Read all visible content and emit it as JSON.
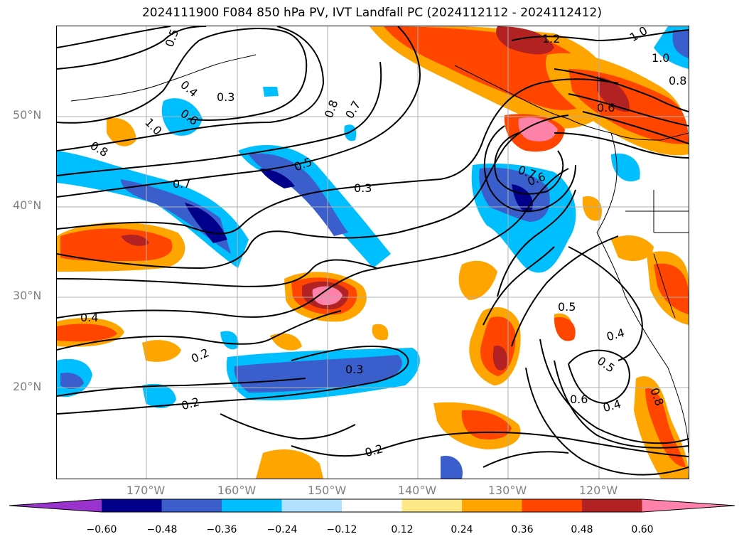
{
  "title": "2024111900 F084 850 hPa PV, IVT Landfall PC (2024112112 - 2024112412)",
  "lat_labels": [
    "50°N",
    "40°N",
    "30°N",
    "20°N"
  ],
  "lon_labels": [
    "170°W",
    "160°W",
    "150°W",
    "140°W",
    "130°W",
    "120°W"
  ],
  "contour_labels": [
    "0.5",
    "0.4",
    "0.3",
    "0.6",
    "1.0",
    "0.8",
    "0.7",
    "0.5",
    "0.3",
    "0.8",
    "0.7",
    "1.2",
    "1.0",
    "1.0",
    "0.8",
    "0.6",
    "0.7",
    "0.6",
    "0.5",
    "0.4",
    "0.4",
    "0.2",
    "0.2",
    "0.3",
    "0.2",
    "0.5",
    "0.6",
    "0.4",
    "0.8"
  ],
  "colorbar": {
    "ticks": [
      "−0.60",
      "−0.48",
      "−0.36",
      "−0.24",
      "−0.12",
      "0.12",
      "0.24",
      "0.36",
      "0.48",
      "0.60"
    ],
    "colors": [
      "#9a32cd",
      "#00008b",
      "#3a5fcd",
      "#00bfff",
      "#b0e2ff",
      "#ffffff",
      "#ffe987",
      "#ffa500",
      "#ff4500",
      "#b22222",
      "#ff82ab"
    ]
  }
}
